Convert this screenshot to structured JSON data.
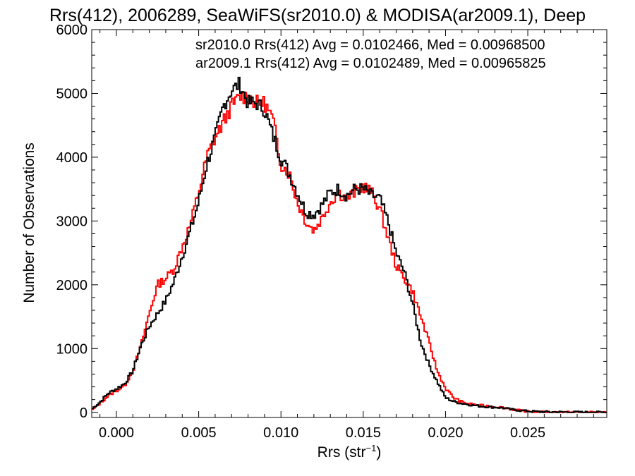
{
  "chart_data": {
    "type": "line",
    "title": "Rrs(412), 2006289, SeaWiFS(sr2010.0) & MODISA(ar2009.1), Deep",
    "xlabel": "Rrs (str",
    "xlabel_sup": "−1",
    "xlabel_close": ")",
    "ylabel": "Number of Observations",
    "xlim": [
      -0.0015,
      0.0298
    ],
    "ylim": [
      -80,
      6000
    ],
    "x_ticks": [
      0.0,
      0.005,
      0.01,
      0.015,
      0.02,
      0.025
    ],
    "x_tick_labels": [
      "0.000",
      "0.005",
      "0.010",
      "0.015",
      "0.020",
      "0.025"
    ],
    "y_ticks": [
      0,
      1000,
      2000,
      3000,
      4000,
      5000,
      6000
    ],
    "y_tick_labels": [
      "0",
      "1000",
      "2000",
      "3000",
      "4000",
      "5000",
      "6000"
    ],
    "grid": false,
    "legend_position": "top-right",
    "series": [
      {
        "name": "sr2010.0",
        "label": "sr2010.0 Rrs(412) Avg = 0.0102466, Med = 0.00968500",
        "color": "#000000",
        "x": [
          -0.0015,
          -0.001,
          -0.0005,
          0.0,
          0.0005,
          0.001,
          0.0015,
          0.002,
          0.0025,
          0.003,
          0.0035,
          0.004,
          0.0045,
          0.005,
          0.0055,
          0.006,
          0.0065,
          0.007,
          0.0075,
          0.008,
          0.0085,
          0.009,
          0.0095,
          0.01,
          0.0105,
          0.011,
          0.0115,
          0.012,
          0.0125,
          0.013,
          0.0135,
          0.014,
          0.0145,
          0.015,
          0.0155,
          0.016,
          0.0165,
          0.017,
          0.0175,
          0.018,
          0.0185,
          0.019,
          0.0195,
          0.02,
          0.0205,
          0.021,
          0.0215,
          0.022,
          0.0225,
          0.023,
          0.0235,
          0.024,
          0.0245,
          0.025,
          0.0255,
          0.026,
          0.027,
          0.028,
          0.029,
          0.0298
        ],
        "y": [
          50,
          160,
          300,
          370,
          450,
          650,
          1050,
          1350,
          1550,
          1750,
          2050,
          2450,
          2850,
          3300,
          3900,
          4300,
          4800,
          5050,
          5150,
          4850,
          4850,
          4750,
          4350,
          4000,
          3750,
          3450,
          3150,
          3100,
          3250,
          3450,
          3500,
          3400,
          3500,
          3500,
          3400,
          3350,
          3000,
          2500,
          2200,
          1700,
          1100,
          750,
          480,
          230,
          170,
          140,
          120,
          100,
          90,
          80,
          70,
          45,
          30,
          20,
          12,
          8,
          5,
          3,
          2,
          1
        ]
      },
      {
        "name": "ar2009.1",
        "label": "ar2009.1 Rrs(412) Avg = 0.0102489, Med = 0.00965825",
        "color": "#ff0000",
        "x": [
          -0.0015,
          -0.001,
          -0.0005,
          0.0,
          0.0005,
          0.001,
          0.0015,
          0.002,
          0.0025,
          0.003,
          0.0035,
          0.004,
          0.0045,
          0.005,
          0.0055,
          0.006,
          0.0065,
          0.007,
          0.0075,
          0.008,
          0.0085,
          0.009,
          0.0095,
          0.01,
          0.0105,
          0.011,
          0.0115,
          0.012,
          0.0125,
          0.013,
          0.0135,
          0.014,
          0.0145,
          0.015,
          0.0155,
          0.016,
          0.0165,
          0.017,
          0.0175,
          0.018,
          0.0185,
          0.019,
          0.0195,
          0.02,
          0.0205,
          0.021,
          0.0215,
          0.022,
          0.0225,
          0.023,
          0.0235,
          0.024,
          0.0245,
          0.025,
          0.0255,
          0.026,
          0.027,
          0.028,
          0.029,
          0.0298
        ],
        "y": [
          30,
          140,
          260,
          340,
          420,
          650,
          1050,
          1550,
          2000,
          2100,
          2250,
          2600,
          2950,
          3450,
          4000,
          4300,
          4550,
          4800,
          4950,
          4950,
          4850,
          4850,
          4600,
          3900,
          3750,
          3300,
          3000,
          2850,
          3050,
          3300,
          3450,
          3350,
          3450,
          3550,
          3450,
          3200,
          2750,
          2300,
          2100,
          1900,
          1500,
          1100,
          650,
          380,
          230,
          160,
          130,
          110,
          100,
          90,
          75,
          50,
          30,
          15,
          8,
          5,
          3,
          2,
          1,
          1
        ]
      }
    ]
  }
}
